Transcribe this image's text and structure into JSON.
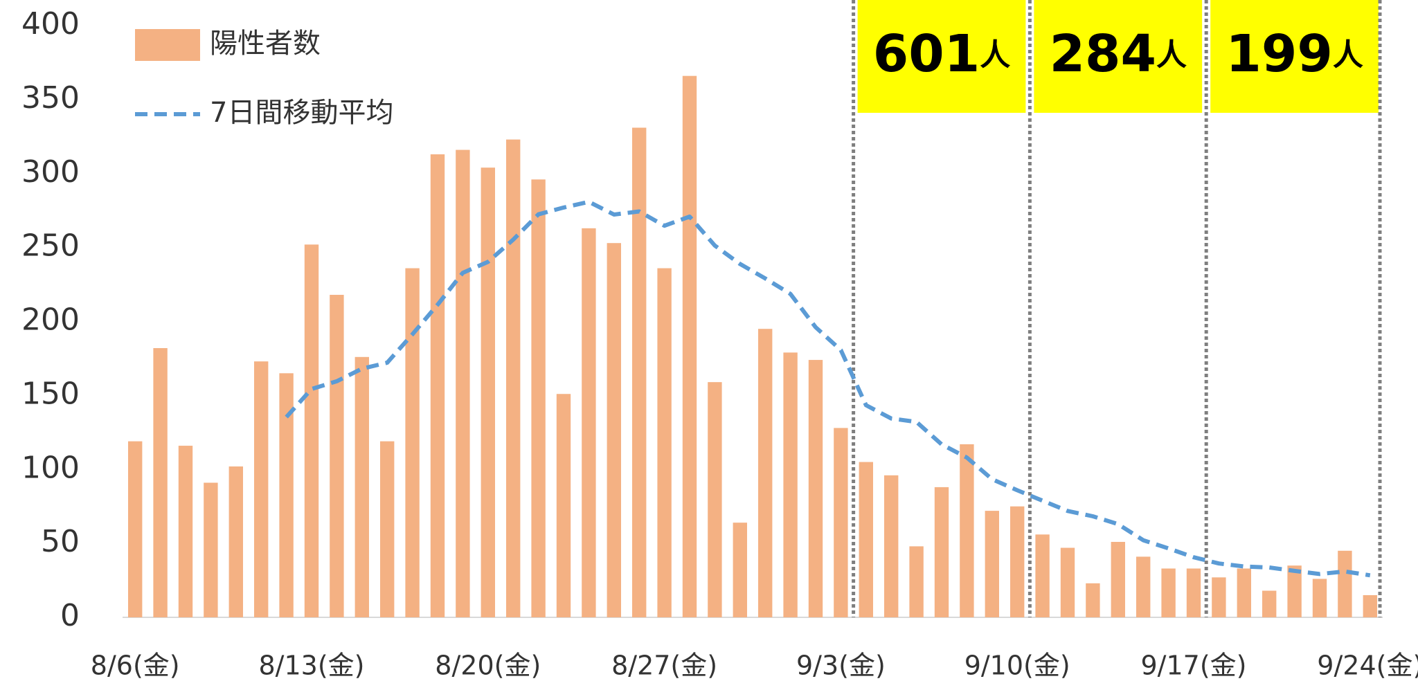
{
  "chart_data": {
    "type": "bar",
    "categories": [
      "8/6(金)",
      null,
      null,
      null,
      null,
      null,
      null,
      "8/13(金)",
      null,
      null,
      null,
      null,
      null,
      null,
      "8/20(金)",
      null,
      null,
      null,
      null,
      null,
      null,
      "8/27(金)",
      null,
      null,
      null,
      null,
      null,
      null,
      "9/3(金)",
      null,
      null,
      null,
      null,
      null,
      null,
      "9/10(金)",
      null,
      null,
      null,
      null,
      null,
      null,
      "9/17(金)",
      null,
      null,
      null,
      null,
      null,
      null,
      "9/24(金)"
    ],
    "series": [
      {
        "name": "陽性者数",
        "type": "bar",
        "color": "#f4b183",
        "values": [
          119,
          182,
          116,
          91,
          102,
          173,
          165,
          252,
          218,
          176,
          119,
          236,
          313,
          316,
          304,
          323,
          296,
          151,
          263,
          253,
          331,
          236,
          366,
          159,
          64,
          195,
          179,
          174,
          128,
          105,
          96,
          48,
          88,
          117,
          72,
          75,
          56,
          47,
          23,
          51,
          41,
          33,
          33,
          27,
          33,
          18,
          35,
          26,
          45,
          15
        ]
      },
      {
        "name": "7日間移動平均",
        "type": "line",
        "color": "#5b9bd5",
        "values": [
          null,
          null,
          null,
          null,
          null,
          null,
          135.4,
          154.4,
          159.6,
          168.1,
          172.1,
          191.3,
          211.3,
          232.9,
          240.3,
          255.3,
          272.4,
          277,
          280.9,
          272.3,
          274.4,
          264.7,
          270.9,
          251.3,
          238.9,
          229.1,
          218.6,
          196.1,
          180.7,
          143.4,
          134.4,
          132.1,
          116.9,
          108,
          93.4,
          85.9,
          78.9,
          71.9,
          68.3,
          63,
          52.1,
          46.6,
          40.6,
          36.4,
          34.4,
          33.7,
          31.4,
          29.3,
          31,
          28.4
        ]
      }
    ],
    "ylim": [
      0,
      400
    ],
    "yticks": [
      0,
      50,
      100,
      150,
      200,
      250,
      300,
      350,
      400
    ],
    "legend": "top-left",
    "weekly_totals": [
      {
        "value": 601,
        "unit": "人"
      },
      {
        "value": 284,
        "unit": "人"
      },
      {
        "value": 199,
        "unit": "人"
      }
    ],
    "annotation_color": "#ffff00"
  }
}
